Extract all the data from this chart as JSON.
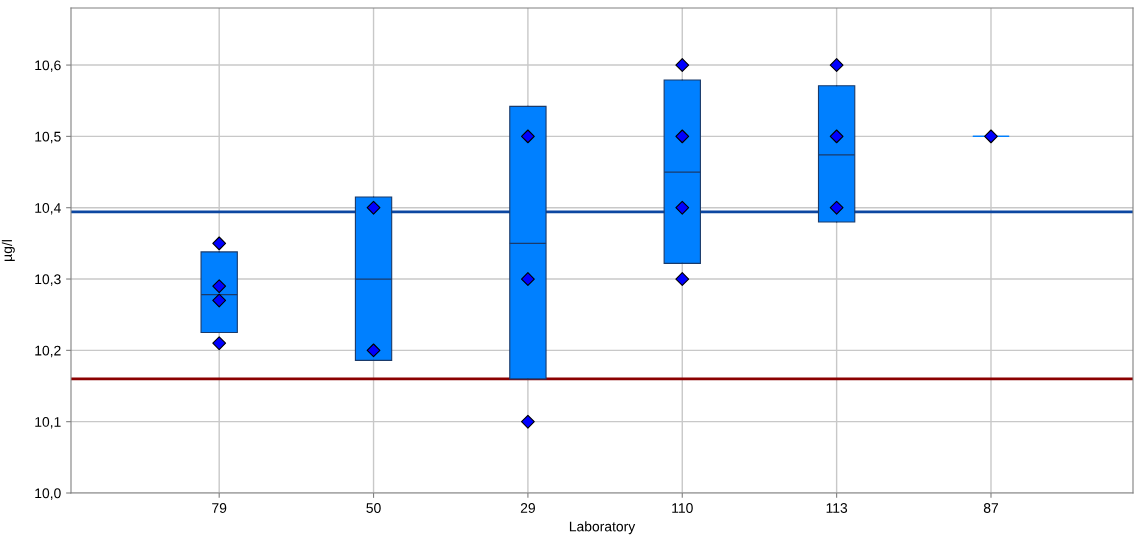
{
  "chart_data": {
    "type": "box",
    "xlabel": "Laboratory",
    "ylabel": "µg/l",
    "categories": [
      "79",
      "50",
      "29",
      "110",
      "113",
      "87"
    ],
    "boxes": [
      {
        "low": 10.225,
        "q1": 10.225,
        "median": 10.278,
        "q3": 10.338,
        "high": 10.338
      },
      {
        "low": 10.186,
        "q1": 10.186,
        "median": 10.3,
        "q3": 10.415,
        "high": 10.415
      },
      {
        "low": 10.16,
        "q1": 10.16,
        "median": 10.35,
        "q3": 10.542,
        "high": 10.542
      },
      {
        "low": 10.322,
        "q1": 10.322,
        "median": 10.45,
        "q3": 10.579,
        "high": 10.579
      },
      {
        "low": 10.38,
        "q1": 10.38,
        "median": 10.474,
        "q3": 10.571,
        "high": 10.571
      },
      {
        "low": 10.5,
        "q1": 10.5,
        "median": 10.5,
        "q3": 10.5,
        "high": 10.5
      }
    ],
    "color": "#0080ff",
    "series": [
      {
        "type": "scatter",
        "color": "#0000ff",
        "marker": "diamond",
        "x": [
          "79",
          "79",
          "79",
          "79",
          "50",
          "50",
          "29",
          "29",
          "29",
          "110",
          "110",
          "110",
          "110",
          "113",
          "113",
          "113",
          "87"
        ],
        "values": [
          10.35,
          10.29,
          10.27,
          10.21,
          10.4,
          10.2,
          10.5,
          10.3,
          10.1,
          10.6,
          10.5,
          10.4,
          10.3,
          10.6,
          10.5,
          10.4,
          10.5
        ]
      }
    ],
    "ref_lines": [
      {
        "axis": "y",
        "value": 10.394,
        "color": "#0d47a1"
      },
      {
        "axis": "y",
        "value": 10.16,
        "color": "#8b0000"
      }
    ],
    "ylim": [
      10.0,
      10.68
    ],
    "yticks": [
      {
        "value": 10.0,
        "label": "10,0"
      },
      {
        "value": 10.1,
        "label": "10,1"
      },
      {
        "value": 10.2,
        "label": "10,2"
      },
      {
        "value": 10.3,
        "label": "10,3"
      },
      {
        "value": 10.4,
        "label": "10,4"
      },
      {
        "value": 10.5,
        "label": "10,5"
      },
      {
        "value": 10.6,
        "label": "10,6"
      }
    ],
    "grid": true
  }
}
